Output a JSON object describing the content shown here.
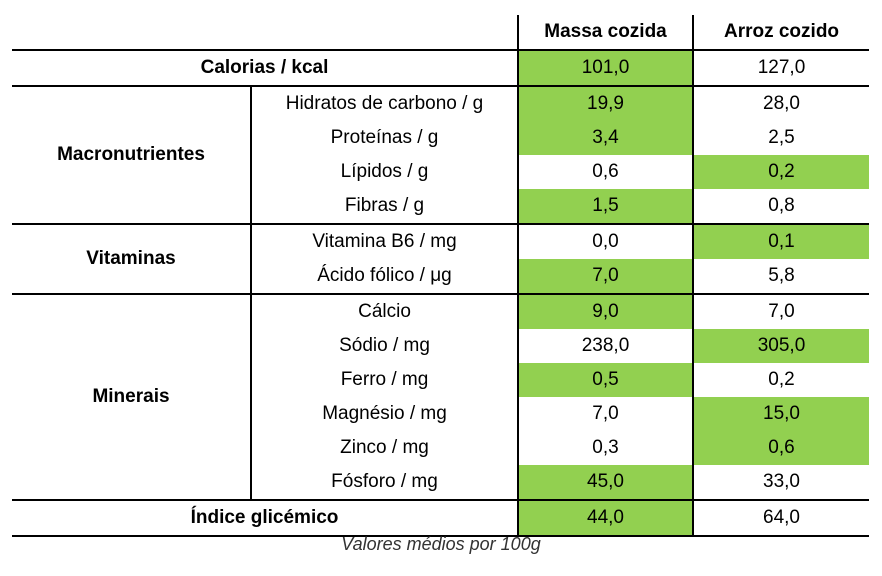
{
  "headers": {
    "col1": "Massa cozida",
    "col2": "Arroz cozido"
  },
  "colors": {
    "highlight": "#92d050",
    "border": "#000000"
  },
  "rows": {
    "calorias": {
      "label": "Calorias / kcal",
      "massa": "101,0",
      "arroz": "127,0"
    },
    "macro_label": "Macronutrientes",
    "macro": [
      {
        "label": "Hidratos de carbono / g",
        "massa": "19,9",
        "arroz": "28,0"
      },
      {
        "label": "Proteínas / g",
        "massa": "3,4",
        "arroz": "2,5"
      },
      {
        "label": "Lípidos / g",
        "massa": "0,6",
        "arroz": "0,2"
      },
      {
        "label": "Fibras / g",
        "massa": "1,5",
        "arroz": "0,8"
      }
    ],
    "vit_label": "Vitaminas",
    "vit": [
      {
        "label": "Vitamina B6 / mg",
        "massa": "0,0",
        "arroz": "0,1"
      },
      {
        "label": "Ácido fólico / μg",
        "massa": "7,0",
        "arroz": "5,8"
      }
    ],
    "min_label": "Minerais",
    "min": [
      {
        "label": "Cálcio",
        "massa": "9,0",
        "arroz": "7,0"
      },
      {
        "label": "Sódio / mg",
        "massa": "238,0",
        "arroz": "305,0"
      },
      {
        "label": "Ferro / mg",
        "massa": "0,5",
        "arroz": "0,2"
      },
      {
        "label": "Magnésio / mg",
        "massa": "7,0",
        "arroz": "15,0"
      },
      {
        "label": "Zinco / mg",
        "massa": "0,3",
        "arroz": "0,6"
      },
      {
        "label": "Fósforo / mg",
        "massa": "45,0",
        "arroz": "33,0"
      }
    ],
    "ig": {
      "label": "Índice glicémico",
      "massa": "44,0",
      "arroz": "64,0"
    }
  },
  "caption": "Valores médios por 100g"
}
